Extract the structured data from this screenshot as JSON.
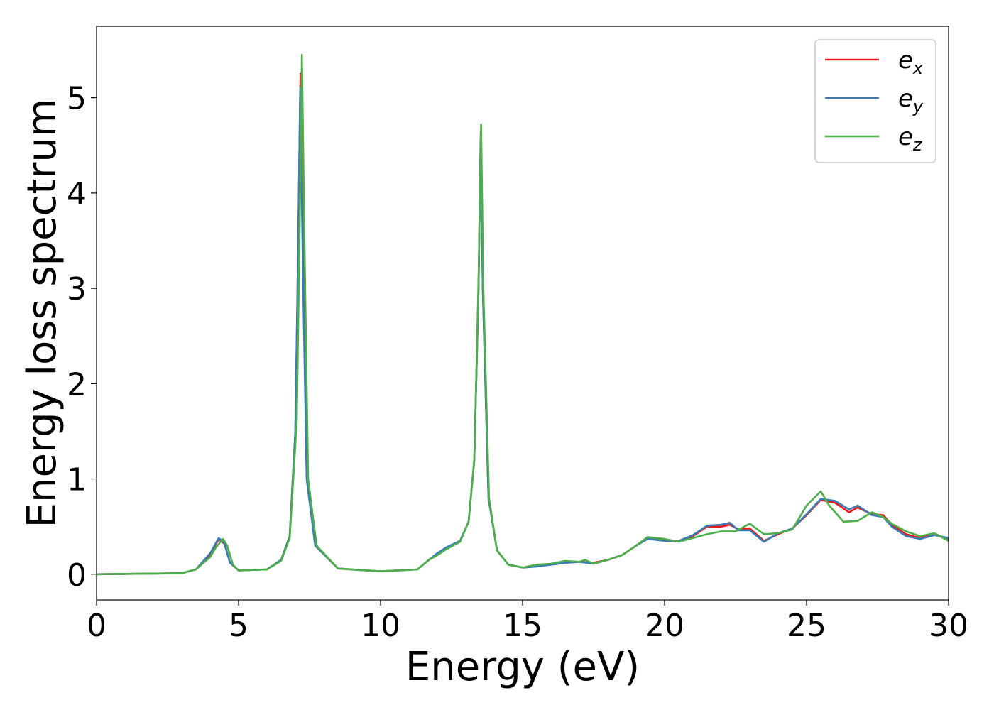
{
  "chart_data": {
    "type": "line",
    "xlabel": "Energy (eV)",
    "ylabel": "Energy loss spectrum",
    "xlim": [
      0,
      30
    ],
    "ylim": [
      -0.27,
      5.75
    ],
    "xticks": [
      "0",
      "5",
      "10",
      "15",
      "20",
      "25",
      "30"
    ],
    "yticks": [
      "0",
      "1",
      "2",
      "3",
      "4",
      "5"
    ],
    "grid": false,
    "legend_position": "top-right",
    "series": [
      {
        "name": "e",
        "sub": "x",
        "color": "#e41a1c",
        "points": [
          [
            0,
            0
          ],
          [
            3,
            0.01
          ],
          [
            3.5,
            0.05
          ],
          [
            4,
            0.2
          ],
          [
            4.3,
            0.37
          ],
          [
            4.5,
            0.32
          ],
          [
            4.7,
            0.12
          ],
          [
            5,
            0.04
          ],
          [
            6,
            0.05
          ],
          [
            6.5,
            0.15
          ],
          [
            6.8,
            0.4
          ],
          [
            7,
            1.5
          ],
          [
            7.1,
            3.5
          ],
          [
            7.18,
            5.25
          ],
          [
            7.28,
            3.2
          ],
          [
            7.4,
            1.0
          ],
          [
            7.7,
            0.3
          ],
          [
            8.5,
            0.06
          ],
          [
            10,
            0.03
          ],
          [
            11.3,
            0.05
          ],
          [
            11.7,
            0.15
          ],
          [
            12,
            0.2
          ],
          [
            12.3,
            0.27
          ],
          [
            12.8,
            0.35
          ],
          [
            13.1,
            0.55
          ],
          [
            13.3,
            1.2
          ],
          [
            13.45,
            3.0
          ],
          [
            13.53,
            4.65
          ],
          [
            13.6,
            3.0
          ],
          [
            13.8,
            0.8
          ],
          [
            14.1,
            0.25
          ],
          [
            14.5,
            0.1
          ],
          [
            15,
            0.07
          ],
          [
            15.5,
            0.09
          ],
          [
            16,
            0.1
          ],
          [
            16.5,
            0.12
          ],
          [
            17,
            0.13
          ],
          [
            17.5,
            0.12
          ],
          [
            18,
            0.15
          ],
          [
            18.5,
            0.2
          ],
          [
            19,
            0.3
          ],
          [
            19.4,
            0.38
          ],
          [
            20,
            0.36
          ],
          [
            20.5,
            0.35
          ],
          [
            21,
            0.4
          ],
          [
            21.5,
            0.5
          ],
          [
            22,
            0.5
          ],
          [
            22.3,
            0.52
          ],
          [
            22.6,
            0.47
          ],
          [
            23,
            0.48
          ],
          [
            23.5,
            0.35
          ],
          [
            24,
            0.42
          ],
          [
            24.5,
            0.48
          ],
          [
            25,
            0.62
          ],
          [
            25.5,
            0.78
          ],
          [
            26,
            0.75
          ],
          [
            26.5,
            0.65
          ],
          [
            26.8,
            0.7
          ],
          [
            27.3,
            0.63
          ],
          [
            27.7,
            0.62
          ],
          [
            28,
            0.52
          ],
          [
            28.5,
            0.42
          ],
          [
            29,
            0.38
          ],
          [
            29.5,
            0.42
          ],
          [
            30,
            0.37
          ]
        ]
      },
      {
        "name": "e",
        "sub": "y",
        "color": "#377eb8",
        "points": [
          [
            0,
            0
          ],
          [
            3,
            0.01
          ],
          [
            3.5,
            0.05
          ],
          [
            4,
            0.22
          ],
          [
            4.3,
            0.38
          ],
          [
            4.5,
            0.33
          ],
          [
            4.7,
            0.12
          ],
          [
            5,
            0.04
          ],
          [
            6,
            0.05
          ],
          [
            6.5,
            0.15
          ],
          [
            6.8,
            0.4
          ],
          [
            7,
            1.5
          ],
          [
            7.1,
            3.4
          ],
          [
            7.17,
            5.1
          ],
          [
            7.27,
            3.1
          ],
          [
            7.4,
            1.0
          ],
          [
            7.7,
            0.3
          ],
          [
            8.5,
            0.06
          ],
          [
            10,
            0.03
          ],
          [
            11.3,
            0.05
          ],
          [
            11.7,
            0.15
          ],
          [
            12,
            0.22
          ],
          [
            12.3,
            0.28
          ],
          [
            12.8,
            0.35
          ],
          [
            13.1,
            0.55
          ],
          [
            13.3,
            1.2
          ],
          [
            13.45,
            3.0
          ],
          [
            13.52,
            4.55
          ],
          [
            13.6,
            3.0
          ],
          [
            13.8,
            0.8
          ],
          [
            14.1,
            0.25
          ],
          [
            14.5,
            0.1
          ],
          [
            15,
            0.07
          ],
          [
            15.5,
            0.08
          ],
          [
            16,
            0.1
          ],
          [
            16.5,
            0.12
          ],
          [
            17,
            0.13
          ],
          [
            17.5,
            0.11
          ],
          [
            18,
            0.15
          ],
          [
            18.5,
            0.2
          ],
          [
            19,
            0.3
          ],
          [
            19.4,
            0.37
          ],
          [
            20,
            0.35
          ],
          [
            20.5,
            0.35
          ],
          [
            21,
            0.41
          ],
          [
            21.5,
            0.51
          ],
          [
            22,
            0.52
          ],
          [
            22.3,
            0.54
          ],
          [
            22.6,
            0.46
          ],
          [
            23,
            0.46
          ],
          [
            23.5,
            0.34
          ],
          [
            24,
            0.43
          ],
          [
            24.5,
            0.48
          ],
          [
            25,
            0.63
          ],
          [
            25.5,
            0.79
          ],
          [
            26,
            0.77
          ],
          [
            26.5,
            0.68
          ],
          [
            26.8,
            0.72
          ],
          [
            27.3,
            0.62
          ],
          [
            27.7,
            0.6
          ],
          [
            28,
            0.5
          ],
          [
            28.5,
            0.4
          ],
          [
            29,
            0.37
          ],
          [
            29.5,
            0.41
          ],
          [
            30,
            0.38
          ]
        ]
      },
      {
        "name": "e",
        "sub": "z",
        "color": "#4daf4a",
        "points": [
          [
            0,
            0
          ],
          [
            3,
            0.01
          ],
          [
            3.5,
            0.05
          ],
          [
            4,
            0.18
          ],
          [
            4.2,
            0.28
          ],
          [
            4.45,
            0.37
          ],
          [
            4.6,
            0.3
          ],
          [
            4.8,
            0.1
          ],
          [
            5,
            0.04
          ],
          [
            6,
            0.05
          ],
          [
            6.5,
            0.14
          ],
          [
            6.8,
            0.38
          ],
          [
            7.05,
            1.6
          ],
          [
            7.15,
            3.6
          ],
          [
            7.23,
            5.45
          ],
          [
            7.33,
            3.3
          ],
          [
            7.45,
            1.0
          ],
          [
            7.75,
            0.3
          ],
          [
            8.5,
            0.06
          ],
          [
            10,
            0.03
          ],
          [
            11.3,
            0.05
          ],
          [
            11.7,
            0.15
          ],
          [
            12,
            0.2
          ],
          [
            12.3,
            0.26
          ],
          [
            12.8,
            0.34
          ],
          [
            13.1,
            0.55
          ],
          [
            13.3,
            1.2
          ],
          [
            13.45,
            3.1
          ],
          [
            13.54,
            4.72
          ],
          [
            13.62,
            3.0
          ],
          [
            13.82,
            0.8
          ],
          [
            14.1,
            0.25
          ],
          [
            14.5,
            0.1
          ],
          [
            15,
            0.07
          ],
          [
            15.5,
            0.1
          ],
          [
            16,
            0.11
          ],
          [
            16.5,
            0.14
          ],
          [
            17,
            0.13
          ],
          [
            17.2,
            0.15
          ],
          [
            17.5,
            0.11
          ],
          [
            18,
            0.15
          ],
          [
            18.5,
            0.2
          ],
          [
            19,
            0.3
          ],
          [
            19.4,
            0.39
          ],
          [
            20,
            0.37
          ],
          [
            20.5,
            0.34
          ],
          [
            21,
            0.38
          ],
          [
            21.5,
            0.42
          ],
          [
            22,
            0.45
          ],
          [
            22.5,
            0.45
          ],
          [
            23,
            0.53
          ],
          [
            23.5,
            0.42
          ],
          [
            24,
            0.43
          ],
          [
            24.5,
            0.47
          ],
          [
            25,
            0.72
          ],
          [
            25.5,
            0.87
          ],
          [
            25.8,
            0.72
          ],
          [
            26.3,
            0.55
          ],
          [
            26.8,
            0.56
          ],
          [
            27.3,
            0.65
          ],
          [
            27.7,
            0.6
          ],
          [
            28,
            0.53
          ],
          [
            28.5,
            0.45
          ],
          [
            29,
            0.4
          ],
          [
            29.5,
            0.43
          ],
          [
            30,
            0.35
          ]
        ]
      }
    ]
  }
}
